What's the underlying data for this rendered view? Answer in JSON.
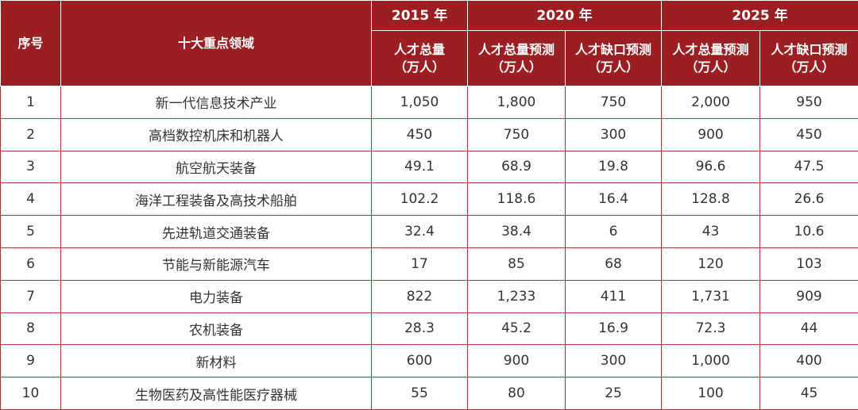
{
  "header": {
    "index_label": "序号",
    "field_label": "十大重点领域",
    "years": [
      "2015 年",
      "2020 年",
      "2025 年"
    ],
    "metrics": {
      "total": "人才总量",
      "total_forecast": "人才总量预测",
      "gap_forecast": "人才缺口预测",
      "unit": "（万人）"
    }
  },
  "rows": [
    {
      "no": "1",
      "field": "新一代信息技术产业",
      "v2015": "1,050",
      "t2020": "1,800",
      "g2020": "750",
      "t2025": "2,000",
      "g2025": "950"
    },
    {
      "no": "2",
      "field": "高档数控机床和机器人",
      "v2015": "450",
      "t2020": "750",
      "g2020": "300",
      "t2025": "900",
      "g2025": "450"
    },
    {
      "no": "3",
      "field": "航空航天装备",
      "v2015": "49.1",
      "t2020": "68.9",
      "g2020": "19.8",
      "t2025": "96.6",
      "g2025": "47.5"
    },
    {
      "no": "4",
      "field": "海洋工程装备及高技术船舶",
      "v2015": "102.2",
      "t2020": "118.6",
      "g2020": "16.4",
      "t2025": "128.8",
      "g2025": "26.6"
    },
    {
      "no": "5",
      "field": "先进轨道交通装备",
      "v2015": "32.4",
      "t2020": "38.4",
      "g2020": "6",
      "t2025": "43",
      "g2025": "10.6"
    },
    {
      "no": "6",
      "field": "节能与新能源汽车",
      "v2015": "17",
      "t2020": "85",
      "g2020": "68",
      "t2025": "120",
      "g2025": "103"
    },
    {
      "no": "7",
      "field": "电力装备",
      "v2015": "822",
      "t2020": "1,233",
      "g2020": "411",
      "t2025": "1,731",
      "g2025": "909"
    },
    {
      "no": "8",
      "field": "农机装备",
      "v2015": "28.3",
      "t2020": "45.2",
      "g2020": "16.9",
      "t2025": "72.3",
      "g2025": "44"
    },
    {
      "no": "9",
      "field": "新材料",
      "v2015": "600",
      "t2020": "900",
      "g2020": "300",
      "t2025": "1,000",
      "g2025": "400"
    },
    {
      "no": "10",
      "field": "生物医药及高性能医疗器械",
      "v2015": "55",
      "t2020": "80",
      "g2020": "25",
      "t2025": "100",
      "g2025": "45"
    }
  ],
  "colors": {
    "header_bg": "#9b1e22",
    "header_text": "#ffffff",
    "border": "#a03a3c",
    "body_text": "#333333"
  }
}
